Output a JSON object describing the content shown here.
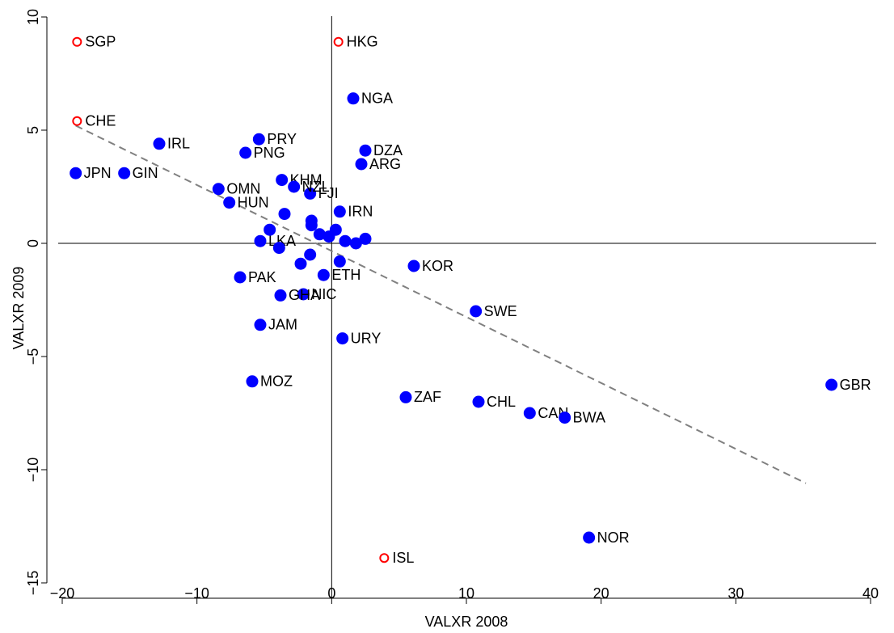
{
  "chart_data": {
    "type": "scatter",
    "x_label": "VALXR 2008",
    "y_label": "VALXR 2009",
    "xlim": [
      -20,
      40
    ],
    "ylim": [
      -15,
      10
    ],
    "xticks": [
      {
        "value": -20,
        "label": "−20"
      },
      {
        "value": -10,
        "label": "−10"
      },
      0,
      10,
      20,
      30,
      40
    ],
    "yticks": [
      {
        "value": -15,
        "label": "−15"
      },
      {
        "value": -10,
        "label": "−10"
      },
      {
        "value": -5,
        "label": "−5"
      },
      0,
      5,
      10
    ],
    "reference_lines": true,
    "trend": {
      "x": [
        -19,
        35.2
      ],
      "y": [
        5.2,
        -10.6
      ],
      "color": "#808080",
      "dashed": true
    },
    "series": [
      {
        "color": "#ff0000",
        "marker": "open",
        "x": [
          -18.9,
          0.5,
          -18.9,
          3.9
        ],
        "y": [
          8.9,
          8.9,
          5.4,
          -13.9
        ],
        "labels": [
          "SGP",
          "HKG",
          "CHE",
          "ISL"
        ]
      },
      {
        "color": "#0000ff",
        "marker": "filled",
        "x": [
          1.6,
          -5.4,
          -12.8,
          -6.4,
          2.5,
          2.2,
          -19.0,
          -15.4,
          -3.7,
          -8.4,
          -1.6,
          -7.6,
          0.6,
          6.1,
          -6.8,
          -0.6,
          -2.1,
          -3.8,
          10.7,
          -5.3,
          0.8,
          -5.9,
          37.1,
          5.5,
          10.9,
          14.7,
          17.3,
          19.1,
          -5.3,
          -3.5,
          -2.8,
          -1.5,
          -0.9,
          0.3,
          1.0,
          1.8,
          -4.6,
          -2.3,
          -1.5,
          -0.2,
          0.6,
          -3.9,
          -1.6,
          2.5
        ],
        "y": [
          6.4,
          4.6,
          4.4,
          4.0,
          4.1,
          3.5,
          3.1,
          3.1,
          2.8,
          2.4,
          2.2,
          1.8,
          1.4,
          -1.0,
          -1.5,
          -1.4,
          -2.25,
          -2.3,
          -3.0,
          -3.6,
          -4.2,
          -6.1,
          -6.25,
          -6.8,
          -7.0,
          -7.5,
          -7.7,
          -13.0,
          0.1,
          1.3,
          2.5,
          0.8,
          0.4,
          0.6,
          0.1,
          0.0,
          0.6,
          -0.9,
          1.0,
          0.3,
          -0.8,
          -0.2,
          -0.5,
          0.2
        ],
        "labels": [
          "NGA",
          "PRY",
          "IRL",
          "PNG",
          "DZA",
          "ARG",
          "JPN",
          "GIN",
          "KHM",
          "OMN",
          "FJI",
          "HUN",
          "IRN",
          "KOR",
          "PAK",
          "ETH",
          "NIC",
          "GHA",
          "SWE",
          "JAM",
          "URY",
          "MOZ",
          "GBR",
          "ZAF",
          "CHL",
          "CAN",
          "BWA",
          "NOR",
          "LKA",
          null,
          "NZL",
          null,
          null,
          null,
          null,
          null,
          null,
          null,
          null,
          null,
          null,
          null,
          null,
          null
        ]
      }
    ]
  }
}
